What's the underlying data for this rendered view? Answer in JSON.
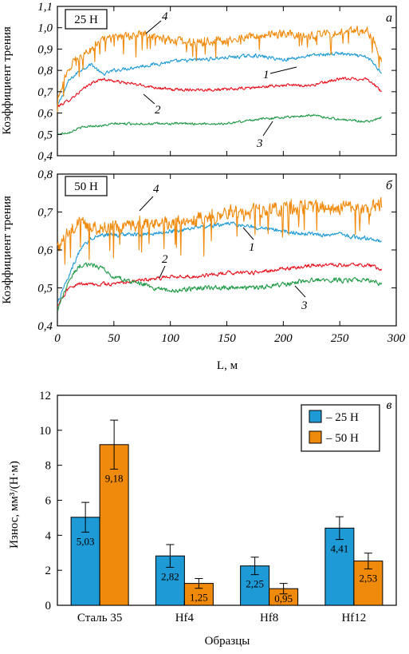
{
  "chart_data": [
    {
      "id": "a",
      "type": "line",
      "panel_letter": "а",
      "load_label": "25 Н",
      "ylabel": "Коэффициент трения",
      "xlabel": "",
      "xlim": [
        0,
        300
      ],
      "ylim": [
        0.4,
        1.1
      ],
      "yticks": [
        "0,4",
        "0,5",
        "0,6",
        "0,7",
        "0,8",
        "0,9",
        "1,0",
        "1,1"
      ],
      "x": [
        0,
        10,
        20,
        30,
        40,
        50,
        75,
        100,
        125,
        150,
        175,
        200,
        225,
        250,
        275,
        287
      ],
      "series": [
        {
          "label": "1",
          "color": "#1e9ad6",
          "values": [
            0.63,
            0.75,
            0.8,
            0.83,
            0.78,
            0.8,
            0.82,
            0.84,
            0.85,
            0.86,
            0.87,
            0.85,
            0.87,
            0.88,
            0.86,
            0.79
          ]
        },
        {
          "label": "2",
          "color": "#e8101c",
          "values": [
            0.63,
            0.66,
            0.7,
            0.74,
            0.76,
            0.75,
            0.73,
            0.71,
            0.71,
            0.71,
            0.72,
            0.73,
            0.73,
            0.76,
            0.76,
            0.7
          ]
        },
        {
          "label": "3",
          "color": "#1f9a46",
          "values": [
            0.5,
            0.51,
            0.53,
            0.54,
            0.54,
            0.55,
            0.55,
            0.55,
            0.55,
            0.55,
            0.57,
            0.58,
            0.59,
            0.57,
            0.56,
            0.58
          ]
        },
        {
          "label": "4",
          "color": "#f08a0c",
          "values": [
            0.66,
            0.82,
            0.86,
            0.9,
            0.94,
            0.95,
            0.97,
            0.94,
            0.93,
            0.94,
            0.96,
            0.97,
            0.96,
            0.98,
            0.99,
            0.86
          ]
        }
      ]
    },
    {
      "id": "b",
      "type": "line",
      "panel_letter": "б",
      "load_label": "50 Н",
      "ylabel": "Коэффициент трения",
      "xlabel": "L, м",
      "xlim": [
        0,
        300
      ],
      "ylim": [
        0.4,
        0.8
      ],
      "yticks": [
        "0,4",
        "0,5",
        "0,6",
        "0,7",
        "0,8"
      ],
      "xticks": [
        "0",
        "50",
        "100",
        "150",
        "200",
        "250",
        "300"
      ],
      "x": [
        0,
        10,
        20,
        30,
        40,
        50,
        75,
        100,
        125,
        150,
        175,
        200,
        225,
        250,
        275,
        287
      ],
      "series": [
        {
          "label": "1",
          "color": "#1e9ad6",
          "values": [
            0.46,
            0.53,
            0.6,
            0.63,
            0.64,
            0.64,
            0.64,
            0.65,
            0.66,
            0.67,
            0.66,
            0.65,
            0.64,
            0.64,
            0.63,
            0.62
          ]
        },
        {
          "label": "2",
          "color": "#e8101c",
          "values": [
            0.45,
            0.5,
            0.51,
            0.51,
            0.51,
            0.51,
            0.52,
            0.53,
            0.53,
            0.54,
            0.54,
            0.55,
            0.56,
            0.56,
            0.56,
            0.55
          ]
        },
        {
          "label": "3",
          "color": "#1f9a46",
          "values": [
            0.44,
            0.52,
            0.56,
            0.56,
            0.55,
            0.53,
            0.51,
            0.49,
            0.5,
            0.5,
            0.5,
            0.51,
            0.52,
            0.52,
            0.52,
            0.51
          ]
        },
        {
          "label": "4",
          "color": "#f08a0c",
          "values": [
            0.6,
            0.65,
            0.67,
            0.66,
            0.66,
            0.66,
            0.67,
            0.67,
            0.68,
            0.7,
            0.7,
            0.71,
            0.71,
            0.71,
            0.71,
            0.72
          ]
        }
      ]
    },
    {
      "id": "c",
      "type": "bar",
      "panel_letter": "в",
      "ylabel": "Износ, мм³/(Н·м)",
      "xlabel": "Образцы",
      "ylim": [
        0,
        12
      ],
      "yticks": [
        "0",
        "2",
        "4",
        "6",
        "8",
        "10",
        "12"
      ],
      "categories": [
        "Сталь 35",
        "Hf4",
        "Hf8",
        "Hf12"
      ],
      "series": [
        {
          "name": "– 25 Н",
          "color": "#1e9ad6",
          "values": [
            5.03,
            2.82,
            2.25,
            4.41
          ],
          "value_labels": [
            "5,03",
            "2,82",
            "2,25",
            "4,41"
          ],
          "errors": [
            0.85,
            0.65,
            0.5,
            0.65
          ]
        },
        {
          "name": "– 50 Н",
          "color": "#f08a0c",
          "values": [
            9.18,
            1.25,
            0.95,
            2.53
          ],
          "value_labels": [
            "9,18",
            "1,25",
            "0,95",
            "2,53"
          ],
          "errors": [
            1.4,
            0.28,
            0.3,
            0.45
          ]
        }
      ],
      "legend_position": "top-right"
    }
  ]
}
